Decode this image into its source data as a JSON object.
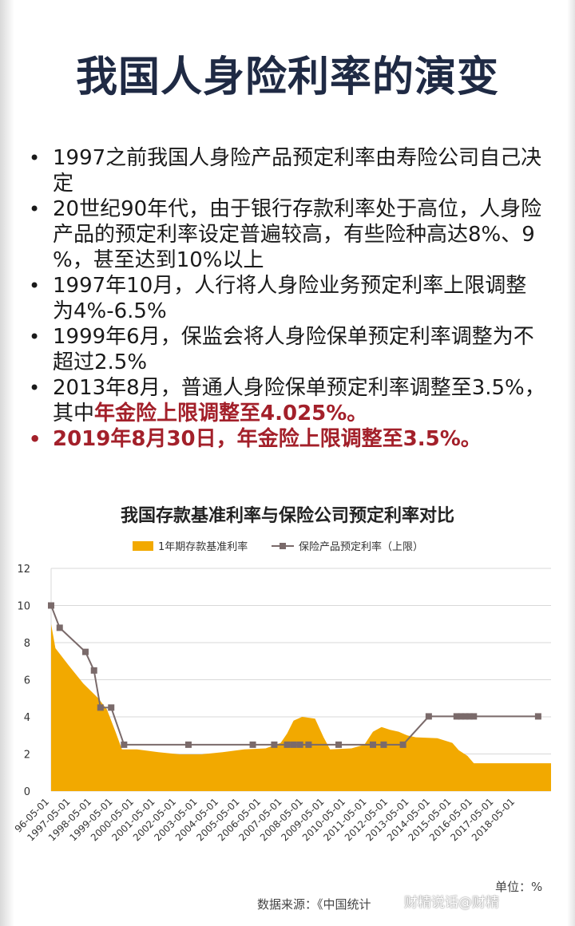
{
  "title": "我国人身险利率的演变",
  "bullets": [
    {
      "text": "1997之前我国人身险产品预定利率由寿险公司自己决定",
      "lines": [
        "1997之前我国人身险产品预定利率由寿险公司自己决",
        "定"
      ]
    },
    {
      "lines": [
        "20世纪90年代，由于银行存款利率处于高位，人身险",
        "产品的预定利率设定普遍较高，有些险种高达8%、9",
        "%，甚至达到10%以上"
      ]
    },
    {
      "lines": [
        "1997年10月，人行将人身险业务预定利率上限调整",
        "为4%-6.5%"
      ]
    },
    {
      "lines": [
        "1999年6月，保监会将人身险保单预定利率调整为不",
        "超过2.5%"
      ]
    },
    {
      "line1": "2013年8月，普通人身险保单预定利率调整至3.5%，",
      "line2_prefix": "其中",
      "line2_red": "年金险上限调整至4.025%。"
    },
    {
      "text": "2019年8月30日，年金险上限调整至3.5%。"
    }
  ],
  "chart_title": "我国存款基准利率与保险公司预定利率对比",
  "unit_text": "单位：%",
  "source_text": "数据来源：《中国统计",
  "watermark_text": "财精说话@财精",
  "colors": {
    "area": "#f2a900",
    "line": "#7a6a6a",
    "title": "#1f2a44",
    "red": "#a3202a"
  },
  "chart_data": {
    "type": "area+line",
    "ylim": [
      0,
      12
    ],
    "yticks": [
      0,
      2,
      4,
      6,
      8,
      10,
      12
    ],
    "grid": true,
    "legend_position": "top",
    "x_ticks": [
      "1996-05-01",
      "1997-05-01",
      "1998-05-01",
      "1999-05-01",
      "2000-05-01",
      "2001-05-01",
      "2002-05-01",
      "2003-05-01",
      "2004-05-01",
      "2005-05-01",
      "2006-05-01",
      "2007-05-01",
      "2008-05-01",
      "2009-05-01",
      "2010-05-01",
      "2011-05-01",
      "2012-05-01",
      "2013-05-01",
      "2014-05-01",
      "2015-05-01",
      "2016-05-01",
      "2017-05-01",
      "2018-05-01"
    ],
    "x_tick_display": [
      "96-05-01",
      "1997-05-01",
      "1998-05-01",
      "1999-05-01",
      "2000-05-01",
      "2001-05-01",
      "2002-05-01",
      "2003-05-01",
      "2004-05-01",
      "2005-05-01",
      "2006-05-01",
      "2007-05-01",
      "2008-05-01",
      "2009-05-01",
      "2010-05-01",
      "2011-05-01",
      "2012-05-01",
      "2013-05-01",
      "2014-05-01",
      "2015-05-01",
      "2016-05-01",
      "2017-05-01",
      "2018-05-01"
    ],
    "series": [
      {
        "name": "1年期存款基准利率",
        "style": "area",
        "points": [
          [
            1996.0,
            9.0
          ],
          [
            1996.2,
            7.7
          ],
          [
            1996.8,
            6.8
          ],
          [
            1997.5,
            5.8
          ],
          [
            1998.2,
            5.0
          ],
          [
            1998.6,
            4.4
          ],
          [
            1999.0,
            3.2
          ],
          [
            1999.3,
            2.25
          ],
          [
            2000.0,
            2.25
          ],
          [
            2001.0,
            2.1
          ],
          [
            2002.0,
            1.98
          ],
          [
            2003.0,
            1.98
          ],
          [
            2004.0,
            2.1
          ],
          [
            2005.0,
            2.25
          ],
          [
            2006.0,
            2.3
          ],
          [
            2006.7,
            2.6
          ],
          [
            2007.0,
            3.1
          ],
          [
            2007.3,
            3.8
          ],
          [
            2007.7,
            4.0
          ],
          [
            2008.3,
            3.9
          ],
          [
            2008.7,
            2.9
          ],
          [
            2009.0,
            2.25
          ],
          [
            2010.0,
            2.3
          ],
          [
            2010.6,
            2.5
          ],
          [
            2011.0,
            3.2
          ],
          [
            2011.4,
            3.45
          ],
          [
            2011.8,
            3.3
          ],
          [
            2012.2,
            3.2
          ],
          [
            2012.6,
            3.0
          ],
          [
            2013.0,
            2.9
          ],
          [
            2014.0,
            2.85
          ],
          [
            2014.7,
            2.6
          ],
          [
            2015.0,
            2.2
          ],
          [
            2015.4,
            1.9
          ],
          [
            2015.7,
            1.5
          ],
          [
            2019.3,
            1.5
          ]
        ]
      },
      {
        "name": "保险产品预定利率（上限）",
        "style": "line",
        "points": [
          [
            1996.0,
            10.0
          ],
          [
            1996.4,
            8.8
          ],
          [
            1997.6,
            7.5
          ],
          [
            1998.0,
            6.5
          ],
          [
            1998.3,
            4.5
          ],
          [
            1998.8,
            4.5
          ],
          [
            1999.4,
            2.5
          ],
          [
            2002.4,
            2.5
          ],
          [
            2005.4,
            2.5
          ],
          [
            2007.4,
            2.5
          ],
          [
            2008.4,
            2.5
          ],
          [
            2009.4,
            2.5
          ],
          [
            2011.4,
            2.5
          ],
          [
            2012.4,
            2.5
          ],
          [
            2013.6,
            4.025
          ],
          [
            2014.9,
            4.025
          ],
          [
            2018.7,
            4.025
          ]
        ],
        "markers": [
          [
            1996.0,
            10.0
          ],
          [
            1996.4,
            8.8
          ],
          [
            1997.6,
            7.5
          ],
          [
            1998.0,
            6.5
          ],
          [
            1998.3,
            4.5
          ],
          [
            1998.8,
            4.5
          ],
          [
            1999.4,
            2.5
          ],
          [
            2002.4,
            2.5
          ],
          [
            2005.4,
            2.5
          ],
          [
            2006.4,
            2.5
          ],
          [
            2007.0,
            2.5
          ],
          [
            2007.3,
            2.5
          ],
          [
            2007.6,
            2.5
          ],
          [
            2008.0,
            2.5
          ],
          [
            2009.4,
            2.5
          ],
          [
            2011.0,
            2.5
          ],
          [
            2011.5,
            2.5
          ],
          [
            2012.4,
            2.5
          ],
          [
            2013.6,
            4.025
          ],
          [
            2014.9,
            4.025
          ],
          [
            2015.1,
            4.025
          ],
          [
            2015.3,
            4.025
          ],
          [
            2015.5,
            4.025
          ],
          [
            2015.7,
            4.025
          ],
          [
            2018.7,
            4.025
          ]
        ]
      }
    ]
  }
}
